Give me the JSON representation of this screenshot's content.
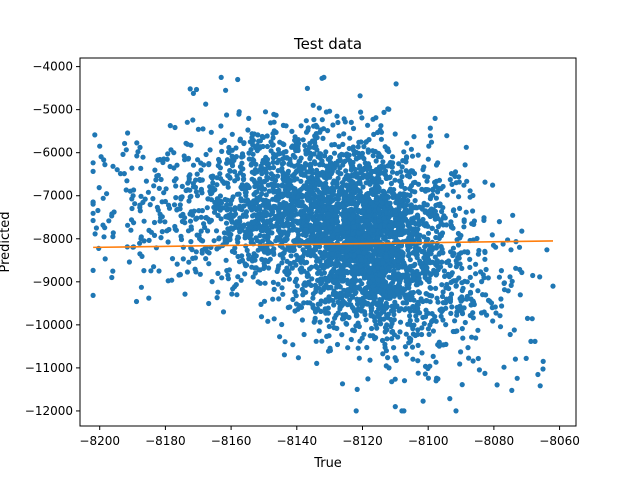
{
  "chart_data": {
    "type": "scatter",
    "title": "Test data",
    "xlabel": "True",
    "ylabel": "Predicted",
    "xlim": [
      -8206,
      -8055
    ],
    "ylim": [
      -12350,
      -3800
    ],
    "xticks": [
      -8200,
      -8180,
      -8160,
      -8140,
      -8120,
      -8100,
      -8080,
      -8060
    ],
    "yticks": [
      -4000,
      -5000,
      -6000,
      -7000,
      -8000,
      -9000,
      -10000,
      -11000,
      -12000
    ],
    "grid": false,
    "legend": "none",
    "colors": {
      "points": "#1f77b4",
      "fit_line": "#ff7f0e"
    },
    "scatter": {
      "approx_point_count": 4000,
      "clusters": [
        {
          "x_center": -8118,
          "y_center": -8100,
          "x_spread": 12,
          "y_spread": 1100,
          "weight": 0.55
        },
        {
          "x_center": -8140,
          "y_center": -7300,
          "x_spread": 14,
          "y_spread": 850,
          "weight": 0.25
        },
        {
          "x_center": -8165,
          "y_center": -7200,
          "x_spread": 20,
          "y_spread": 1050,
          "weight": 0.12
        },
        {
          "x_center": -8095,
          "y_center": -9200,
          "x_spread": 14,
          "y_spread": 1100,
          "weight": 0.08
        }
      ],
      "notable_points": [
        {
          "x": -8163,
          "y": -4250
        },
        {
          "x": -8158,
          "y": -4300
        },
        {
          "x": -8135,
          "y": -4900
        },
        {
          "x": -8110,
          "y": -11900
        },
        {
          "x": -8108,
          "y": -12000
        },
        {
          "x": -8065,
          "y": -10850
        },
        {
          "x": -8062,
          "y": -9100
        },
        {
          "x": -8200,
          "y": -5850
        },
        {
          "x": -8201,
          "y": -7750
        },
        {
          "x": -8196,
          "y": -8750
        }
      ]
    },
    "fit_line": {
      "x": [
        -8202,
        -8062
      ],
      "y": [
        -8200,
        -8050
      ]
    }
  }
}
